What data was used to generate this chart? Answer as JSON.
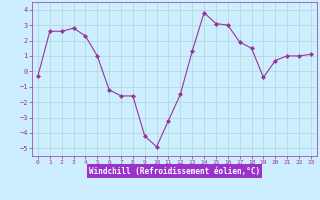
{
  "x": [
    0,
    1,
    2,
    3,
    4,
    5,
    6,
    7,
    8,
    9,
    10,
    11,
    12,
    13,
    14,
    15,
    16,
    17,
    18,
    19,
    20,
    21,
    22,
    23
  ],
  "y": [
    -0.3,
    2.6,
    2.6,
    2.8,
    2.3,
    1.0,
    -1.2,
    -1.6,
    -1.6,
    -4.2,
    -4.9,
    -3.2,
    -1.5,
    1.3,
    3.8,
    3.1,
    3.0,
    1.9,
    1.5,
    -0.4,
    0.7,
    1.0,
    1.0,
    1.1
  ],
  "line_color": "#993399",
  "marker": "D",
  "marker_size": 2,
  "background_color": "#cceeff",
  "grid_color": "#aacccc",
  "xlabel": "Windchill (Refroidissement éolien,°C)",
  "xlabel_color": "#993399",
  "tick_color": "#993399",
  "label_bg_color": "#9933cc",
  "ylim": [
    -5.5,
    4.5
  ],
  "yticks": [
    -5,
    -4,
    -3,
    -2,
    -1,
    0,
    1,
    2,
    3,
    4
  ],
  "xlim": [
    -0.5,
    23.5
  ],
  "xticks": [
    0,
    1,
    2,
    3,
    4,
    5,
    6,
    7,
    8,
    9,
    10,
    11,
    12,
    13,
    14,
    15,
    16,
    17,
    18,
    19,
    20,
    21,
    22,
    23
  ]
}
